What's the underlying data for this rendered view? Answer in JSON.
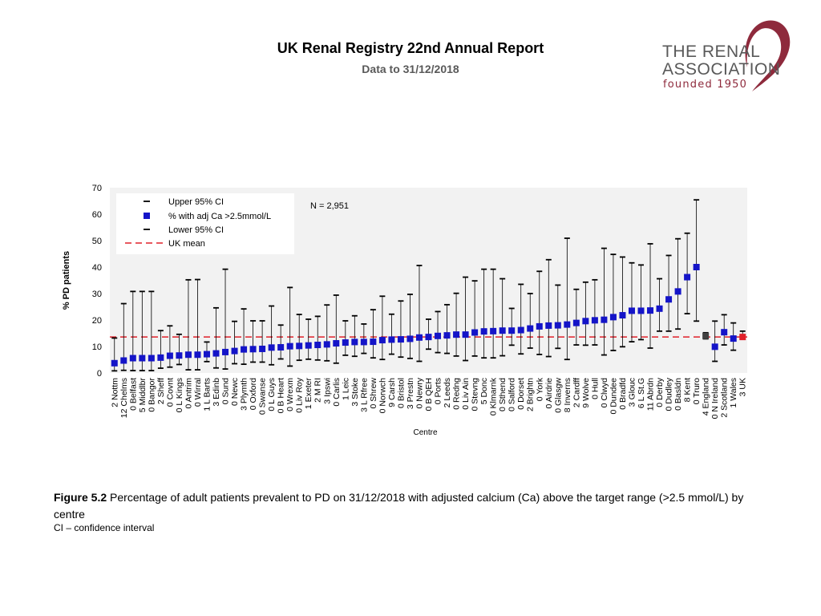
{
  "header": {
    "title": "UK Renal Registry 22nd Annual Report",
    "subtitle": "Data to 31/12/2018"
  },
  "logo": {
    "line1": "THE RENAL",
    "line2": "ASSOCIATION",
    "line3": "founded 1950",
    "accent_color": "#8e2a3c"
  },
  "caption": {
    "label": "Figure 5.2",
    "text": " Percentage of adult patients prevalent to PD on 31/12/2018 with adjusted calcium (Ca) above the target range (>2.5 mmol/L) by centre",
    "note": "CI – confidence interval"
  },
  "chart_data": {
    "type": "scatter",
    "ylabel": "% PD patients",
    "xlabel": "Centre",
    "ylim": [
      0,
      70
    ],
    "yticks": [
      0,
      10,
      20,
      30,
      40,
      50,
      60,
      70
    ],
    "annotation": "N = 2,951",
    "uk_mean": 13.6,
    "legend": {
      "upper": "Upper 95% CI",
      "point": "% with adj Ca >2.5mmol/L",
      "lower": "Lower 95% CI",
      "mean": "UK mean"
    },
    "colors": {
      "point": "#1414c8",
      "mean": "#e0202a",
      "national": "#e0202a",
      "england": "#404040",
      "ci": "#000000",
      "plot_bg": "#f2f2f2"
    },
    "categories": [
      "2 Nottm",
      "12 Chelms",
      "0 Belfast",
      "5 Middlbr",
      "0 Bangor",
      "2 Sheff",
      "0 Covnt",
      "0 L Kings",
      "0 Antrim",
      "0 Wirral",
      "1 L Barts",
      "3 Edinb",
      "0 Sund",
      "0 Newc",
      "3 Plymth",
      "0 Oxford",
      "0 Swanse",
      "0 L Guys",
      "0 B Heart",
      "0 Wrexm",
      "0 Liv Roy",
      "1 Exeter",
      "2 M RI",
      "3 Ipswi",
      "0 Carlis",
      "1 Leic",
      "3 Stoke",
      "3 L Rfree",
      "0 Shrew",
      "0 Norwch",
      "9 Carsh",
      "0 Bristol",
      "3 Prestn",
      "0 Newry",
      "0 B QEH",
      "0 Ports",
      "2 Leeds",
      "0 Redng",
      "0 Liv Ain",
      "0 Stevng",
      "5 Donc",
      "0 Klmarnk",
      "0 Sthend",
      "0 Salford",
      "0 Dorset",
      "2 Brightn",
      "0 York",
      "0 Airdrie",
      "0 Glasgw",
      "8 Inverns",
      "2 Cardff",
      "9 Wolve",
      "0 Hull",
      "0 Clwyd",
      "0 Dundee",
      "0 Bradfd",
      "3 Glouc",
      "6 L St.G",
      "11 Abrdn",
      "0 Derby",
      "0 Dudley",
      "0 Basldn",
      "8 Kent",
      "0 Truro",
      "4 England",
      "0 N Ireland",
      "2 Scotland",
      "1 Wales",
      "3 UK"
    ],
    "values": [
      3.7,
      4.7,
      5.6,
      5.6,
      5.6,
      5.8,
      6.5,
      6.6,
      6.9,
      6.9,
      7.1,
      7.4,
      7.9,
      8.3,
      8.9,
      9.0,
      9.1,
      9.6,
      9.7,
      10.1,
      10.2,
      10.4,
      10.6,
      10.8,
      11.2,
      11.5,
      11.7,
      11.7,
      11.8,
      12.4,
      12.6,
      12.7,
      12.9,
      13.4,
      13.6,
      14.0,
      14.2,
      14.5,
      14.5,
      15.3,
      15.7,
      15.8,
      16.0,
      16.0,
      16.2,
      16.8,
      17.6,
      17.9,
      18.0,
      18.3,
      18.9,
      19.6,
      19.9,
      20.1,
      21.1,
      21.8,
      23.5,
      23.5,
      23.6,
      24.3,
      27.8,
      30.8,
      36.2,
      40.0,
      14.0,
      9.9,
      15.4,
      13.0,
      13.6
    ],
    "upper": [
      13.2,
      26.2,
      30.8,
      30.8,
      30.8,
      16.0,
      17.8,
      14.6,
      35.2,
      35.3,
      11.7,
      24.6,
      39.2,
      19.5,
      24.2,
      19.7,
      19.7,
      25.3,
      18.1,
      32.3,
      22.1,
      20.3,
      21.4,
      25.7,
      29.4,
      19.7,
      21.6,
      18.5,
      23.9,
      29.0,
      22.2,
      27.2,
      29.7,
      40.6,
      20.3,
      23.2,
      25.8,
      30.1,
      36.2,
      34.8,
      39.2,
      39.2,
      35.6,
      24.4,
      33.5,
      30.0,
      38.4,
      42.8,
      33.2,
      50.9,
      31.6,
      34.3,
      35.2,
      47.1,
      44.8,
      43.8,
      41.6,
      40.8,
      48.8,
      35.6,
      44.4,
      50.7,
      52.8,
      65.4,
      15.2,
      19.6,
      22.0,
      18.9,
      15.8
    ],
    "lower": [
      0.8,
      1.0,
      0.9,
      0.9,
      0.9,
      1.8,
      2.2,
      3.2,
      1.2,
      1.2,
      4.3,
      1.9,
      1.5,
      3.5,
      3.3,
      4.1,
      4.1,
      3.1,
      5.3,
      2.6,
      4.8,
      5.2,
      4.9,
      4.6,
      3.7,
      6.7,
      6.3,
      7.4,
      5.7,
      5.1,
      7.1,
      6.0,
      5.5,
      4.4,
      9.0,
      7.7,
      7.4,
      6.4,
      4.7,
      6.4,
      5.7,
      5.7,
      6.5,
      10.5,
      7.2,
      9.4,
      7.0,
      6.2,
      9.3,
      5.1,
      10.6,
      10.5,
      10.6,
      6.8,
      8.5,
      9.9,
      11.8,
      12.6,
      9.4,
      15.8,
      15.8,
      16.6,
      22.4,
      19.6,
      12.9,
      4.4,
      10.6,
      8.6,
      12.8
    ]
  }
}
